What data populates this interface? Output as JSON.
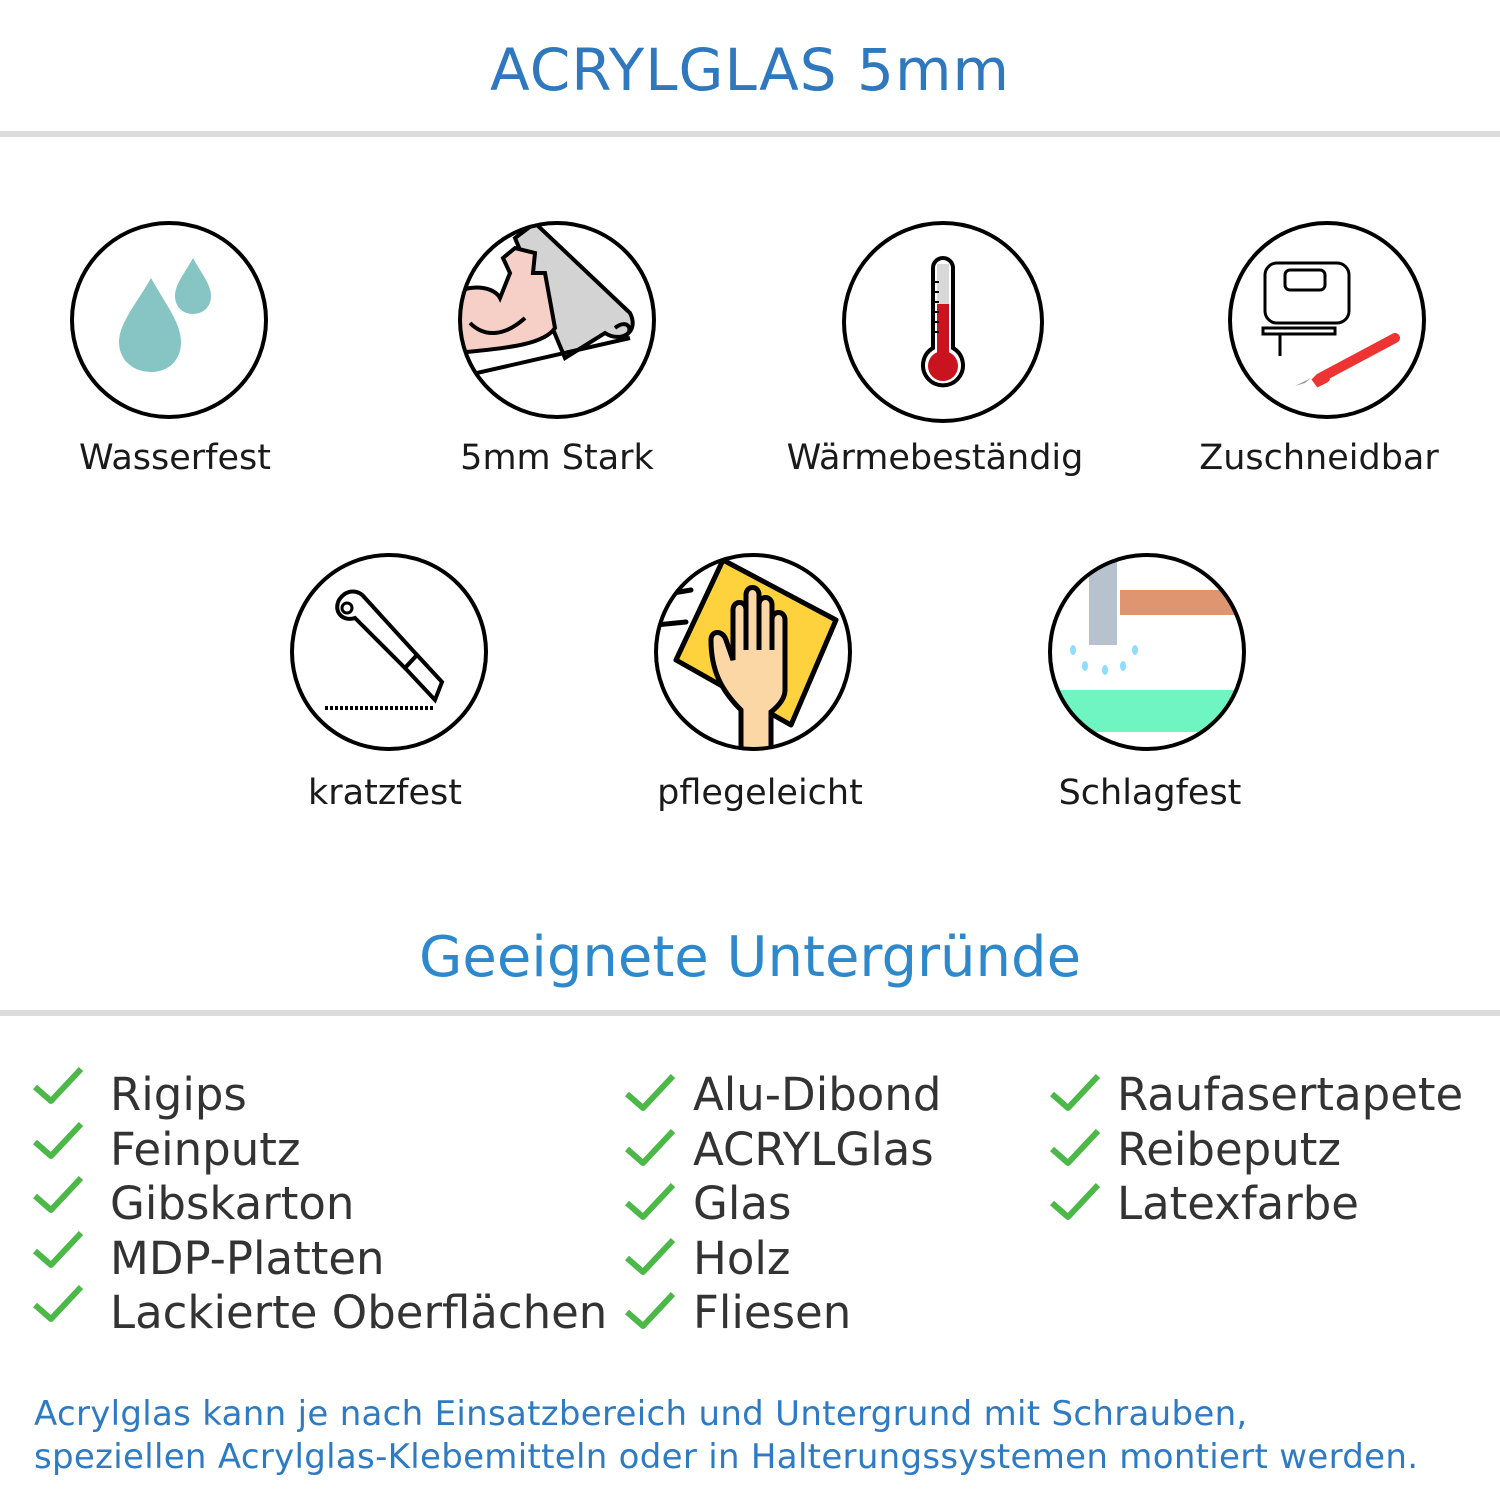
{
  "header": {
    "title": "ACRYLGLAS 5mm"
  },
  "features": [
    {
      "label": "Wasserfest",
      "icon": "water-drops-icon"
    },
    {
      "label": "5mm Stark",
      "icon": "strong-arm-icon"
    },
    {
      "label": "Wärmebeständig",
      "icon": "thermometer-icon"
    },
    {
      "label": "Zuschneidbar",
      "icon": "jigsaw-knife-icon"
    },
    {
      "label": "kratzfest",
      "icon": "cutter-knife-icon"
    },
    {
      "label": "pflegeleicht",
      "icon": "cleaning-hand-icon"
    },
    {
      "label": "Schlagfest",
      "icon": "hammer-icon"
    }
  ],
  "surfaces": {
    "title": "Geeignete Untergründe",
    "columns": [
      [
        "Rigips",
        "Feinputz",
        "Gibskarton",
        "MDP-Platten",
        "Lackierte Oberflächen"
      ],
      [
        "Alu-Dibond",
        "ACRYLGlas",
        "Glas",
        "Holz",
        "Fliesen"
      ],
      [
        "Raufasertapete",
        "Reibeputz",
        "Latexfarbe"
      ]
    ],
    "check_icon": "checkmark-icon",
    "check_color": "#4cb848"
  },
  "footer": {
    "line1": "Acrylglas kann je nach Einsatzbereich und Untergrund mit Schrauben,",
    "line2": "speziellen Acrylglas-Klebemitteln oder in Halterungssystemen montiert werden."
  },
  "colors": {
    "title": "#2f78bd",
    "subtitle": "#2e88cc",
    "footer": "#2e7bc4",
    "divider": "#dcdcdc"
  }
}
